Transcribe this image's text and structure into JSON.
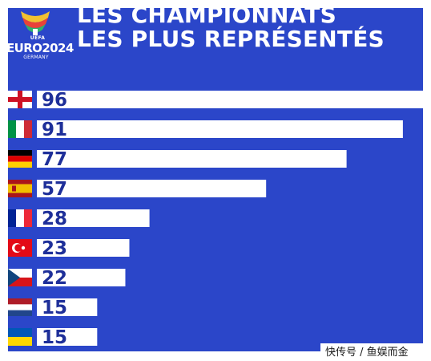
{
  "logo": {
    "icon": "euro-2024-trophy-logo",
    "uefa": "UEFA",
    "euro": "EURO2024",
    "country": "GERMANY"
  },
  "title": {
    "line1": "LES CHAMPIONNATS",
    "line2": "LES PLUS REPRÉSENTÉS"
  },
  "watermark": "快传号 / 鱼娱而金",
  "colors": {
    "background": "#2b46c9",
    "bar": "#ffffff",
    "label": "#1e2f99"
  },
  "chart_data": {
    "type": "bar",
    "orientation": "horizontal",
    "title": "LES CHAMPIONNATS LES PLUS REPRÉSENTÉS",
    "categories": [
      "england-flag",
      "italy-flag",
      "germany-flag",
      "spain-flag",
      "france-flag",
      "turkey-flag",
      "czechia-flag",
      "netherlands-flag",
      "ukraine-flag"
    ],
    "values": [
      96,
      91,
      77,
      57,
      28,
      23,
      22,
      15,
      15
    ],
    "value_labels": [
      "96",
      "91",
      "77",
      "57",
      "28",
      "23",
      "22",
      "15",
      "15"
    ],
    "xlim": [
      0,
      96
    ],
    "grid": false,
    "legend": "none"
  }
}
